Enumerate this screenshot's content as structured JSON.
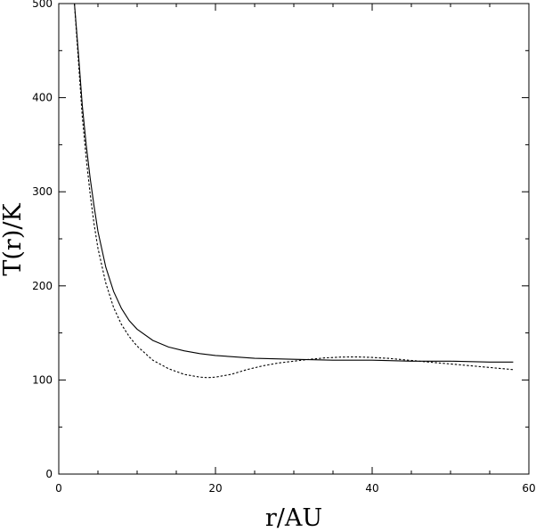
{
  "chart_data": {
    "type": "line",
    "title": "",
    "xlabel": "r/AU",
    "ylabel": "T(r)/K",
    "xlim": [
      0,
      60
    ],
    "ylim": [
      0,
      500
    ],
    "x_ticks": [
      0,
      20,
      40,
      60
    ],
    "x_tick_labels": [
      "0",
      "20",
      "40",
      "60"
    ],
    "x_minor_step": 5,
    "y_ticks": [
      0,
      100,
      200,
      300,
      400,
      500
    ],
    "y_tick_labels": [
      "0",
      "100",
      "200",
      "300",
      "400",
      "500"
    ],
    "y_minor_step": 50,
    "grid": false,
    "legend": false,
    "series": [
      {
        "style": "solid",
        "color": "#000000",
        "x": [
          2.0,
          2.5,
          3,
          3.5,
          4,
          4.5,
          5,
          6,
          7,
          8,
          9,
          10,
          12,
          14,
          16,
          18,
          20,
          25,
          30,
          35,
          40,
          45,
          50,
          55,
          58
        ],
        "y": [
          500,
          448,
          392,
          350,
          315,
          285,
          258,
          220,
          194,
          176,
          163,
          154,
          142,
          135,
          131,
          128,
          126,
          123,
          122,
          121,
          121,
          120,
          120,
          119,
          119
        ]
      },
      {
        "style": "dashed",
        "color": "#000000",
        "x": [
          2.0,
          2.5,
          3,
          3.5,
          4,
          4.5,
          5,
          6,
          7,
          8,
          9,
          10,
          12,
          14,
          16,
          18,
          19,
          20,
          22,
          24,
          26,
          28,
          30,
          32,
          34,
          36,
          38,
          40,
          42,
          44,
          46,
          48,
          50,
          52,
          54,
          56,
          58
        ],
        "y": [
          500,
          440,
          380,
          336,
          298,
          266,
          240,
          203,
          177,
          159,
          146,
          136,
          121,
          112,
          106,
          103,
          102.5,
          103,
          106,
          111,
          115,
          118,
          120,
          122,
          123.5,
          124.3,
          124.5,
          124,
          123,
          121.5,
          120,
          118.5,
          117,
          115.5,
          114,
          112.5,
          111
        ]
      }
    ]
  }
}
